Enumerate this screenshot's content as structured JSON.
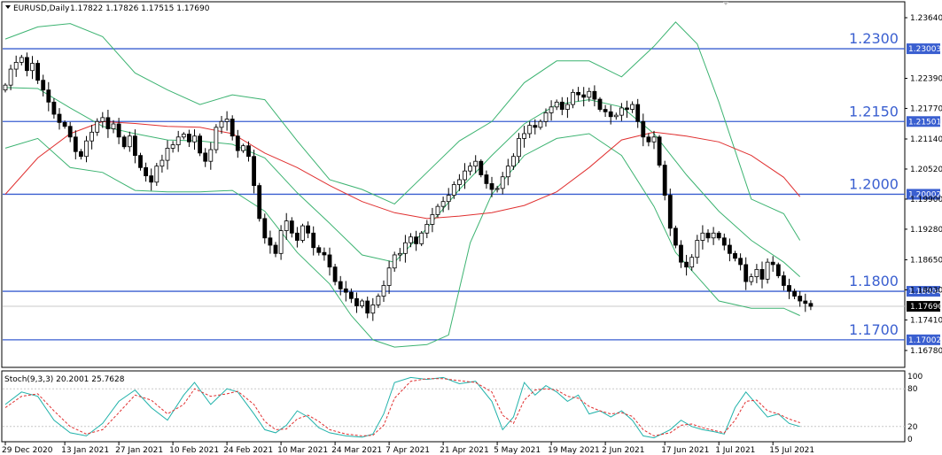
{
  "chart_data": [
    {
      "type": "candlestick",
      "symbol": "EURUSD,Daily",
      "ohlc_header": "1.17822 1.17826 1.17515 1.17690",
      "current_price": "1.17690",
      "ylim": [
        1.1645,
        1.2395
      ],
      "price_ticks": [
        "1.23640",
        "1.22390",
        "1.21770",
        "1.21140",
        "1.20520",
        "1.19900",
        "1.19280",
        "1.18650",
        "1.18030",
        "1.17410",
        "1.16780"
      ],
      "x_labels": [
        {
          "label": "29 Dec 2020",
          "index": 0
        },
        {
          "label": "13 Jan 2021",
          "index": 11
        },
        {
          "label": "27 Jan 2021",
          "index": 21
        },
        {
          "label": "10 Feb 2021",
          "index": 31
        },
        {
          "label": "24 Feb 2021",
          "index": 41
        },
        {
          "label": "10 Mar 2021",
          "index": 51
        },
        {
          "label": "24 Mar 2021",
          "index": 61
        },
        {
          "label": "7 Apr 2021",
          "index": 71
        },
        {
          "label": "21 Apr 2021",
          "index": 81
        },
        {
          "label": "5 May 2021",
          "index": 91
        },
        {
          "label": "19 May 2021",
          "index": 101
        },
        {
          "label": "2 Jun 2021",
          "index": 111
        },
        {
          "label": "17 Jun 2021",
          "index": 122
        },
        {
          "label": "1 Jul 2021",
          "index": 132
        },
        {
          "label": "15 Jul 2021",
          "index": 142
        }
      ],
      "levels": [
        {
          "value": 1.23,
          "label": "1.2300",
          "tag": "1.23003"
        },
        {
          "value": 1.215,
          "label": "1.2150",
          "tag": "1.21501"
        },
        {
          "value": 1.2,
          "label": "1.2000",
          "tag": "1.20002"
        },
        {
          "value": 1.18,
          "label": "1.1800",
          "tag": "1.18004"
        },
        {
          "value": 1.17,
          "label": "1.1700",
          "tag": "1.17002"
        }
      ],
      "closes": [
        1.2225,
        1.2258,
        1.2272,
        1.2282,
        1.2255,
        1.227,
        1.2235,
        1.2215,
        1.219,
        1.2165,
        1.2148,
        1.214,
        1.2118,
        1.2088,
        1.2078,
        1.211,
        1.2128,
        1.215,
        1.2158,
        1.2135,
        1.2145,
        1.2118,
        1.2098,
        1.212,
        1.208,
        1.2055,
        1.2038,
        1.2025,
        1.2058,
        1.207,
        1.2095,
        1.2102,
        1.2118,
        1.2124,
        1.2108,
        1.212,
        1.2085,
        1.2068,
        1.2092,
        1.2138,
        1.215,
        1.2155,
        1.212,
        1.209,
        1.21,
        1.2078,
        1.2018,
        1.195,
        1.191,
        1.1895,
        1.1878,
        1.1925,
        1.1945,
        1.192,
        1.1905,
        1.1935,
        1.192,
        1.189,
        1.188,
        1.1875,
        1.185,
        1.182,
        1.1805,
        1.1798,
        1.1785,
        1.177,
        1.178,
        1.1755,
        1.1772,
        1.179,
        1.1812,
        1.1848,
        1.1875,
        1.1878,
        1.19,
        1.1912,
        1.1898,
        1.192,
        1.1938,
        1.1958,
        1.1975,
        1.1985,
        1.1998,
        1.202,
        1.203,
        1.2048,
        1.2058,
        1.2068,
        1.204,
        1.2022,
        1.201,
        1.2012,
        1.2036,
        1.2058,
        1.2078,
        1.2115,
        1.2125,
        1.2142,
        1.2138,
        1.215,
        1.2168,
        1.218,
        1.219,
        1.2175,
        1.2185,
        1.221,
        1.2205,
        1.22,
        1.2212,
        1.2196,
        1.2175,
        1.217,
        1.216,
        1.2163,
        1.2178,
        1.2175,
        1.2185,
        1.215,
        1.2118,
        1.2108,
        1.2118,
        1.206,
        1.1998,
        1.193,
        1.1895,
        1.186,
        1.185,
        1.187,
        1.1905,
        1.192,
        1.191,
        1.192,
        1.191,
        1.1895,
        1.1878,
        1.1868,
        1.1855,
        1.182,
        1.183,
        1.1845,
        1.1825,
        1.186,
        1.1855,
        1.1832,
        1.1812,
        1.18,
        1.179,
        1.178,
        1.1775,
        1.1769
      ],
      "ma_red": [
        {
          "i": 0,
          "v": 1.2
        },
        {
          "i": 6,
          "v": 1.2075
        },
        {
          "i": 12,
          "v": 1.2125
        },
        {
          "i": 18,
          "v": 1.215
        },
        {
          "i": 24,
          "v": 1.2146
        },
        {
          "i": 30,
          "v": 1.214
        },
        {
          "i": 36,
          "v": 1.2138
        },
        {
          "i": 42,
          "v": 1.2125
        },
        {
          "i": 48,
          "v": 1.2085
        },
        {
          "i": 54,
          "v": 1.2055
        },
        {
          "i": 60,
          "v": 1.2018
        },
        {
          "i": 66,
          "v": 1.1985
        },
        {
          "i": 72,
          "v": 1.1962
        },
        {
          "i": 78,
          "v": 1.195
        },
        {
          "i": 84,
          "v": 1.1955
        },
        {
          "i": 90,
          "v": 1.1962
        },
        {
          "i": 96,
          "v": 1.1977
        },
        {
          "i": 102,
          "v": 1.2005
        },
        {
          "i": 108,
          "v": 1.2055
        },
        {
          "i": 114,
          "v": 1.2112
        },
        {
          "i": 120,
          "v": 1.2128
        },
        {
          "i": 126,
          "v": 1.212
        },
        {
          "i": 132,
          "v": 1.2108
        },
        {
          "i": 138,
          "v": 1.208
        },
        {
          "i": 144,
          "v": 1.2035
        },
        {
          "i": 147,
          "v": 1.1995
        }
      ],
      "bb_upper": [
        {
          "i": 0,
          "v": 1.232
        },
        {
          "i": 6,
          "v": 1.2345
        },
        {
          "i": 12,
          "v": 1.2352
        },
        {
          "i": 18,
          "v": 1.2325
        },
        {
          "i": 24,
          "v": 1.225
        },
        {
          "i": 30,
          "v": 1.2215
        },
        {
          "i": 36,
          "v": 1.2185
        },
        {
          "i": 42,
          "v": 1.2205
        },
        {
          "i": 48,
          "v": 1.2195
        },
        {
          "i": 54,
          "v": 1.211
        },
        {
          "i": 60,
          "v": 1.203
        },
        {
          "i": 66,
          "v": 1.201
        },
        {
          "i": 72,
          "v": 1.198
        },
        {
          "i": 78,
          "v": 1.2045
        },
        {
          "i": 84,
          "v": 1.211
        },
        {
          "i": 90,
          "v": 1.215
        },
        {
          "i": 96,
          "v": 1.223
        },
        {
          "i": 102,
          "v": 1.2275
        },
        {
          "i": 108,
          "v": 1.2275
        },
        {
          "i": 114,
          "v": 1.2242
        },
        {
          "i": 120,
          "v": 1.2305
        },
        {
          "i": 124,
          "v": 1.2355
        },
        {
          "i": 128,
          "v": 1.231
        },
        {
          "i": 132,
          "v": 1.219
        },
        {
          "i": 138,
          "v": 1.199
        },
        {
          "i": 144,
          "v": 1.196
        },
        {
          "i": 147,
          "v": 1.1905
        }
      ],
      "bb_mid": [
        {
          "i": 0,
          "v": 1.222
        },
        {
          "i": 6,
          "v": 1.2218
        },
        {
          "i": 12,
          "v": 1.2178
        },
        {
          "i": 18,
          "v": 1.214
        },
        {
          "i": 24,
          "v": 1.2125
        },
        {
          "i": 30,
          "v": 1.2112
        },
        {
          "i": 36,
          "v": 1.211
        },
        {
          "i": 42,
          "v": 1.2103
        },
        {
          "i": 48,
          "v": 1.2075
        },
        {
          "i": 54,
          "v": 1.2003
        },
        {
          "i": 60,
          "v": 1.194
        },
        {
          "i": 66,
          "v": 1.1875
        },
        {
          "i": 72,
          "v": 1.186
        },
        {
          "i": 78,
          "v": 1.193
        },
        {
          "i": 84,
          "v": 1.201
        },
        {
          "i": 90,
          "v": 1.208
        },
        {
          "i": 96,
          "v": 1.2145
        },
        {
          "i": 102,
          "v": 1.2185
        },
        {
          "i": 108,
          "v": 1.2195
        },
        {
          "i": 114,
          "v": 1.218
        },
        {
          "i": 120,
          "v": 1.2125
        },
        {
          "i": 126,
          "v": 1.204
        },
        {
          "i": 132,
          "v": 1.1965
        },
        {
          "i": 138,
          "v": 1.1905
        },
        {
          "i": 144,
          "v": 1.186
        },
        {
          "i": 147,
          "v": 1.183
        }
      ],
      "bb_lower": [
        {
          "i": 0,
          "v": 1.2095
        },
        {
          "i": 6,
          "v": 1.2115
        },
        {
          "i": 12,
          "v": 1.2055
        },
        {
          "i": 18,
          "v": 1.2045
        },
        {
          "i": 24,
          "v": 1.2008
        },
        {
          "i": 30,
          "v": 1.2005
        },
        {
          "i": 36,
          "v": 1.2005
        },
        {
          "i": 42,
          "v": 1.2008
        },
        {
          "i": 48,
          "v": 1.1965
        },
        {
          "i": 54,
          "v": 1.188
        },
        {
          "i": 60,
          "v": 1.1815
        },
        {
          "i": 64,
          "v": 1.175
        },
        {
          "i": 68,
          "v": 1.17
        },
        {
          "i": 72,
          "v": 1.1685
        },
        {
          "i": 78,
          "v": 1.169
        },
        {
          "i": 82,
          "v": 1.171
        },
        {
          "i": 86,
          "v": 1.19
        },
        {
          "i": 90,
          "v": 1.2
        },
        {
          "i": 96,
          "v": 1.208
        },
        {
          "i": 102,
          "v": 1.2115
        },
        {
          "i": 108,
          "v": 1.2125
        },
        {
          "i": 114,
          "v": 1.208
        },
        {
          "i": 120,
          "v": 1.1975
        },
        {
          "i": 124,
          "v": 1.188
        },
        {
          "i": 128,
          "v": 1.183
        },
        {
          "i": 132,
          "v": 1.178
        },
        {
          "i": 138,
          "v": 1.1765
        },
        {
          "i": 144,
          "v": 1.1765
        },
        {
          "i": 147,
          "v": 1.175
        }
      ]
    },
    {
      "type": "line",
      "title": "Stoch(9,3,3) 20.2001 25.7628",
      "ylim": [
        0,
        100
      ],
      "y_ticks": [
        "100",
        "80",
        "20",
        "0"
      ],
      "k_main": [
        {
          "i": 0,
          "v": 55
        },
        {
          "i": 3,
          "v": 75
        },
        {
          "i": 6,
          "v": 68
        },
        {
          "i": 9,
          "v": 30
        },
        {
          "i": 12,
          "v": 10
        },
        {
          "i": 15,
          "v": 5
        },
        {
          "i": 18,
          "v": 25
        },
        {
          "i": 21,
          "v": 60
        },
        {
          "i": 24,
          "v": 78
        },
        {
          "i": 27,
          "v": 50
        },
        {
          "i": 30,
          "v": 30
        },
        {
          "i": 33,
          "v": 70
        },
        {
          "i": 35,
          "v": 90
        },
        {
          "i": 38,
          "v": 55
        },
        {
          "i": 41,
          "v": 80
        },
        {
          "i": 43,
          "v": 75
        },
        {
          "i": 46,
          "v": 40
        },
        {
          "i": 48,
          "v": 15
        },
        {
          "i": 50,
          "v": 10
        },
        {
          "i": 52,
          "v": 22
        },
        {
          "i": 54,
          "v": 45
        },
        {
          "i": 56,
          "v": 35
        },
        {
          "i": 58,
          "v": 18
        },
        {
          "i": 60,
          "v": 10
        },
        {
          "i": 63,
          "v": 5
        },
        {
          "i": 66,
          "v": 3
        },
        {
          "i": 68,
          "v": 8
        },
        {
          "i": 70,
          "v": 40
        },
        {
          "i": 72,
          "v": 90
        },
        {
          "i": 75,
          "v": 98
        },
        {
          "i": 78,
          "v": 95
        },
        {
          "i": 81,
          "v": 98
        },
        {
          "i": 84,
          "v": 88
        },
        {
          "i": 87,
          "v": 92
        },
        {
          "i": 90,
          "v": 60
        },
        {
          "i": 92,
          "v": 15
        },
        {
          "i": 94,
          "v": 35
        },
        {
          "i": 96,
          "v": 90
        },
        {
          "i": 98,
          "v": 70
        },
        {
          "i": 100,
          "v": 85
        },
        {
          "i": 102,
          "v": 75
        },
        {
          "i": 104,
          "v": 60
        },
        {
          "i": 106,
          "v": 70
        },
        {
          "i": 108,
          "v": 40
        },
        {
          "i": 110,
          "v": 45
        },
        {
          "i": 112,
          "v": 35
        },
        {
          "i": 114,
          "v": 45
        },
        {
          "i": 116,
          "v": 30
        },
        {
          "i": 118,
          "v": 5
        },
        {
          "i": 120,
          "v": 2
        },
        {
          "i": 123,
          "v": 15
        },
        {
          "i": 125,
          "v": 30
        },
        {
          "i": 127,
          "v": 20
        },
        {
          "i": 129,
          "v": 15
        },
        {
          "i": 131,
          "v": 12
        },
        {
          "i": 133,
          "v": 8
        },
        {
          "i": 135,
          "v": 50
        },
        {
          "i": 137,
          "v": 75
        },
        {
          "i": 139,
          "v": 55
        },
        {
          "i": 141,
          "v": 35
        },
        {
          "i": 143,
          "v": 40
        },
        {
          "i": 145,
          "v": 25
        },
        {
          "i": 147,
          "v": 20
        }
      ],
      "d_signal": [
        {
          "i": 0,
          "v": 50
        },
        {
          "i": 3,
          "v": 68
        },
        {
          "i": 6,
          "v": 72
        },
        {
          "i": 9,
          "v": 45
        },
        {
          "i": 12,
          "v": 20
        },
        {
          "i": 15,
          "v": 8
        },
        {
          "i": 18,
          "v": 15
        },
        {
          "i": 21,
          "v": 42
        },
        {
          "i": 24,
          "v": 70
        },
        {
          "i": 27,
          "v": 62
        },
        {
          "i": 30,
          "v": 40
        },
        {
          "i": 33,
          "v": 55
        },
        {
          "i": 35,
          "v": 80
        },
        {
          "i": 38,
          "v": 68
        },
        {
          "i": 41,
          "v": 72
        },
        {
          "i": 43,
          "v": 76
        },
        {
          "i": 46,
          "v": 55
        },
        {
          "i": 48,
          "v": 28
        },
        {
          "i": 50,
          "v": 15
        },
        {
          "i": 52,
          "v": 16
        },
        {
          "i": 54,
          "v": 32
        },
        {
          "i": 56,
          "v": 38
        },
        {
          "i": 58,
          "v": 28
        },
        {
          "i": 60,
          "v": 15
        },
        {
          "i": 63,
          "v": 8
        },
        {
          "i": 66,
          "v": 5
        },
        {
          "i": 68,
          "v": 6
        },
        {
          "i": 70,
          "v": 22
        },
        {
          "i": 72,
          "v": 65
        },
        {
          "i": 75,
          "v": 92
        },
        {
          "i": 78,
          "v": 96
        },
        {
          "i": 81,
          "v": 96
        },
        {
          "i": 84,
          "v": 93
        },
        {
          "i": 87,
          "v": 90
        },
        {
          "i": 90,
          "v": 75
        },
        {
          "i": 92,
          "v": 38
        },
        {
          "i": 94,
          "v": 25
        },
        {
          "i": 96,
          "v": 62
        },
        {
          "i": 98,
          "v": 78
        },
        {
          "i": 100,
          "v": 80
        },
        {
          "i": 102,
          "v": 78
        },
        {
          "i": 104,
          "v": 68
        },
        {
          "i": 106,
          "v": 65
        },
        {
          "i": 108,
          "v": 52
        },
        {
          "i": 110,
          "v": 45
        },
        {
          "i": 112,
          "v": 40
        },
        {
          "i": 114,
          "v": 42
        },
        {
          "i": 116,
          "v": 36
        },
        {
          "i": 118,
          "v": 15
        },
        {
          "i": 120,
          "v": 5
        },
        {
          "i": 123,
          "v": 10
        },
        {
          "i": 125,
          "v": 22
        },
        {
          "i": 127,
          "v": 24
        },
        {
          "i": 129,
          "v": 18
        },
        {
          "i": 131,
          "v": 14
        },
        {
          "i": 133,
          "v": 10
        },
        {
          "i": 135,
          "v": 30
        },
        {
          "i": 137,
          "v": 60
        },
        {
          "i": 139,
          "v": 62
        },
        {
          "i": 141,
          "v": 45
        },
        {
          "i": 143,
          "v": 40
        },
        {
          "i": 145,
          "v": 32
        },
        {
          "i": 147,
          "v": 26
        }
      ]
    }
  ]
}
